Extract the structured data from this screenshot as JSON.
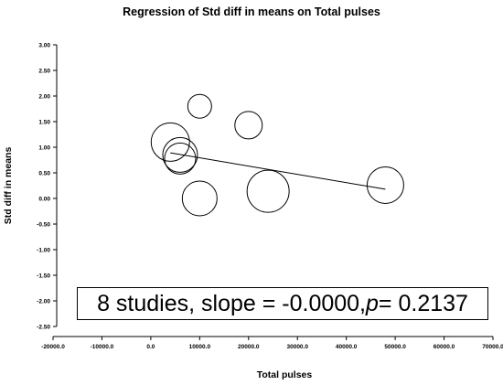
{
  "chart_data": {
    "type": "scatter",
    "title": "Regression of Std diff in means on Total pulses",
    "xlabel": "Total pulses",
    "ylabel": "Std diff in means",
    "xlim": [
      -20000,
      70000
    ],
    "ylim": [
      -2.5,
      3.0
    ],
    "x_ticks": [
      "-20000.0",
      "-10000.0",
      "0.0",
      "10000.0",
      "20000.0",
      "30000.0",
      "40000.0",
      "50000.0",
      "60000.0",
      "70000.0"
    ],
    "y_ticks": [
      "3.00",
      "2.50",
      "2.00",
      "1.50",
      "1.00",
      "0.50",
      "0.00",
      "-0.50",
      "-1.00",
      "-1.50",
      "-2.00",
      "-2.50"
    ],
    "points": [
      {
        "x": 10000,
        "y": 1.8,
        "size": 13
      },
      {
        "x": 20000,
        "y": 1.43,
        "size": 15
      },
      {
        "x": 4000,
        "y": 1.1,
        "size": 21
      },
      {
        "x": 6000,
        "y": 0.85,
        "size": 19
      },
      {
        "x": 6000,
        "y": 0.78,
        "size": 17
      },
      {
        "x": 10000,
        "y": 0.0,
        "size": 19
      },
      {
        "x": 24000,
        "y": 0.14,
        "size": 23
      },
      {
        "x": 48000,
        "y": 0.26,
        "size": 20
      }
    ],
    "regression_line": {
      "x": [
        4000,
        48000
      ],
      "y": [
        0.89,
        0.18
      ]
    },
    "grid": false,
    "legend": "none"
  },
  "annotation": {
    "prefix": "8 studies, slope = -0.0000, ",
    "p_symbol": "p",
    "suffix": " = 0.2137"
  }
}
